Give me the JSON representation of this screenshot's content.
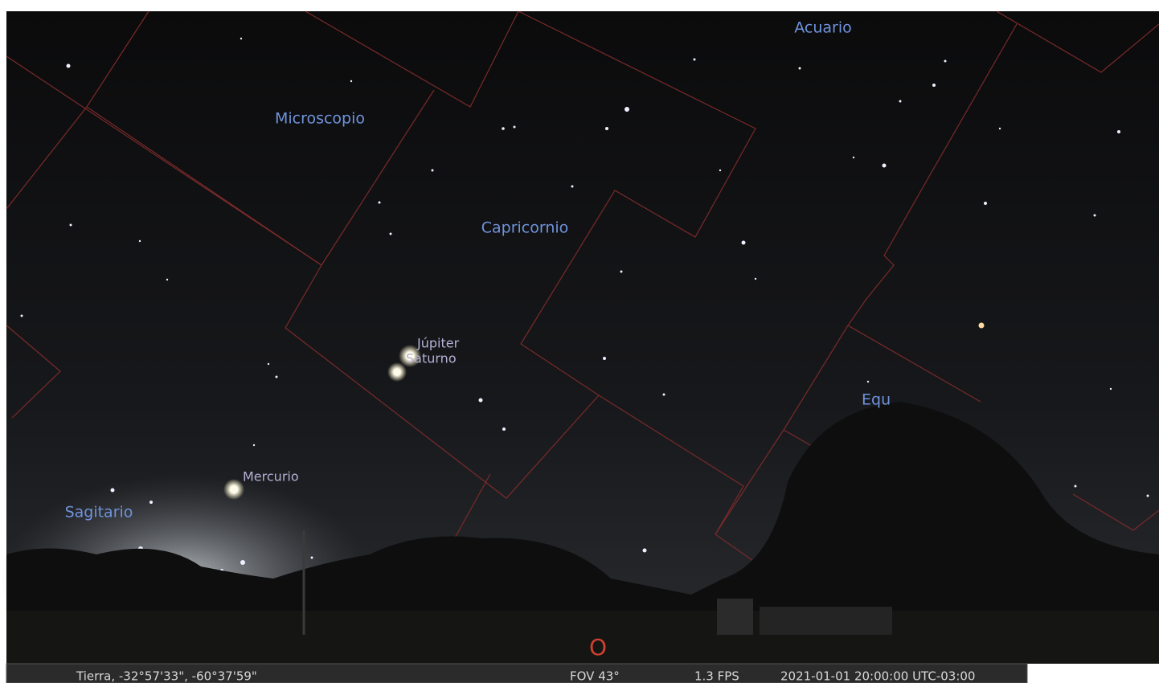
{
  "sky": {
    "constellations": [
      "Acuario",
      "Microscopio",
      "Capricornio",
      "Sagitario",
      "Equ"
    ],
    "planets": [
      "Júpiter",
      "Saturno",
      "Mercurio"
    ],
    "cardinal": "O"
  },
  "status_bar": {
    "location": "Tierra, -32°57'33\", -60°37'59\"",
    "fov": "FOV 43°",
    "fps": "1.3 FPS",
    "datetime": "2021-01-01 20:00:00 UTC-03:00"
  }
}
